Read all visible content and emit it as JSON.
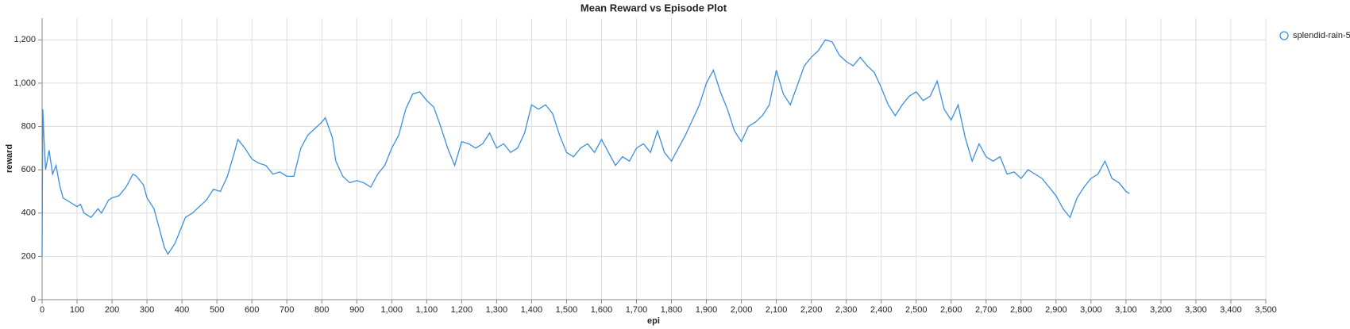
{
  "chart_data": {
    "type": "line",
    "title": "Mean Reward vs Episode Plot",
    "x_label": "epi",
    "y_label": "reward",
    "x": [
      0,
      2,
      5,
      10,
      20,
      30,
      40,
      50,
      60,
      80,
      100,
      110,
      120,
      140,
      160,
      170,
      190,
      200,
      220,
      240,
      260,
      270,
      290,
      300,
      320,
      330,
      340,
      350,
      360,
      380,
      390,
      410,
      430,
      450,
      470,
      490,
      510,
      530,
      550,
      560,
      580,
      600,
      620,
      640,
      660,
      680,
      700,
      720,
      740,
      760,
      780,
      800,
      810,
      830,
      840,
      860,
      880,
      900,
      920,
      940,
      960,
      980,
      1000,
      1020,
      1040,
      1060,
      1080,
      1100,
      1120,
      1140,
      1160,
      1180,
      1200,
      1220,
      1240,
      1260,
      1280,
      1300,
      1320,
      1340,
      1360,
      1380,
      1400,
      1420,
      1440,
      1460,
      1480,
      1500,
      1520,
      1540,
      1560,
      1580,
      1600,
      1620,
      1640,
      1660,
      1680,
      1700,
      1720,
      1740,
      1760,
      1780,
      1800,
      1820,
      1840,
      1860,
      1880,
      1900,
      1920,
      1940,
      1960,
      1980,
      2000,
      2020,
      2040,
      2060,
      2080,
      2100,
      2120,
      2140,
      2160,
      2180,
      2200,
      2220,
      2240,
      2260,
      2280,
      2300,
      2320,
      2340,
      2360,
      2380,
      2400,
      2420,
      2440,
      2460,
      2480,
      2500,
      2520,
      2540,
      2560,
      2580,
      2600,
      2620,
      2640,
      2660,
      2680,
      2700,
      2720,
      2740,
      2760,
      2780,
      2800,
      2820,
      2840,
      2860,
      2880,
      2900,
      2920,
      2940,
      2960,
      2980,
      3000,
      3020,
      3040,
      3060,
      3080,
      3100,
      3110
    ],
    "series": [
      {
        "name": "splendid-rain-5",
        "color": "#3b8fdb",
        "values": [
          200,
          880,
          760,
          600,
          690,
          580,
          620,
          530,
          470,
          450,
          430,
          440,
          400,
          380,
          420,
          400,
          460,
          470,
          480,
          520,
          580,
          570,
          530,
          470,
          420,
          360,
          300,
          240,
          210,
          260,
          300,
          380,
          400,
          430,
          460,
          510,
          500,
          570,
          680,
          740,
          700,
          650,
          630,
          620,
          580,
          590,
          570,
          570,
          700,
          760,
          790,
          820,
          840,
          750,
          640,
          570,
          540,
          550,
          540,
          520,
          580,
          620,
          700,
          760,
          880,
          950,
          960,
          920,
          890,
          800,
          700,
          620,
          730,
          720,
          700,
          720,
          770,
          700,
          720,
          680,
          700,
          770,
          900,
          880,
          900,
          860,
          760,
          680,
          660,
          700,
          720,
          680,
          740,
          680,
          620,
          660,
          640,
          700,
          720,
          680,
          780,
          680,
          640,
          700,
          760,
          830,
          900,
          1000,
          1060,
          960,
          880,
          780,
          730,
          800,
          820,
          850,
          900,
          1060,
          950,
          900,
          990,
          1080,
          1120,
          1150,
          1200,
          1190,
          1130,
          1100,
          1080,
          1120,
          1080,
          1050,
          980,
          900,
          850,
          900,
          940,
          960,
          920,
          940,
          1010,
          880,
          830,
          900,
          750,
          640,
          720,
          660,
          640,
          660,
          580,
          590,
          560,
          600,
          580,
          560,
          520,
          480,
          420,
          380,
          470,
          520,
          560,
          580,
          640,
          560,
          540,
          500,
          490
        ]
      }
    ],
    "xlim": [
      0,
      3500
    ],
    "xticks": [
      0,
      100,
      200,
      300,
      400,
      500,
      600,
      700,
      800,
      900,
      {
        "value": 1000,
        "label": "1,000"
      },
      {
        "value": 1100,
        "label": "1,100"
      },
      {
        "value": 1200,
        "label": "1,200"
      },
      {
        "value": 1300,
        "label": "1,300"
      },
      {
        "value": 1400,
        "label": "1,400"
      },
      {
        "value": 1500,
        "label": "1,500"
      },
      {
        "value": 1600,
        "label": "1,600"
      },
      {
        "value": 1700,
        "label": "1,700"
      },
      {
        "value": 1800,
        "label": "1,800"
      },
      {
        "value": 1900,
        "label": "1,900"
      },
      {
        "value": 2000,
        "label": "2,000"
      },
      {
        "value": 2100,
        "label": "2,100"
      },
      {
        "value": 2200,
        "label": "2,200"
      },
      {
        "value": 2300,
        "label": "2,300"
      },
      {
        "value": 2400,
        "label": "2,400"
      },
      {
        "value": 2500,
        "label": "2,500"
      },
      {
        "value": 2600,
        "label": "2,600"
      },
      {
        "value": 2700,
        "label": "2,700"
      },
      {
        "value": 2800,
        "label": "2,800"
      },
      {
        "value": 2900,
        "label": "2,900"
      },
      {
        "value": 3000,
        "label": "3,000"
      },
      {
        "value": 3100,
        "label": "3,100"
      },
      {
        "value": 3200,
        "label": "3,200"
      },
      {
        "value": 3300,
        "label": "3,300"
      },
      {
        "value": 3400,
        "label": "3,400"
      },
      {
        "value": 3500,
        "label": "3,500"
      }
    ],
    "ylim": [
      0,
      1300
    ],
    "yticks": [
      0,
      200,
      400,
      600,
      800,
      {
        "value": 1000,
        "label": "1,000"
      },
      {
        "value": 1200,
        "label": "1,200"
      }
    ],
    "grid": true
  }
}
